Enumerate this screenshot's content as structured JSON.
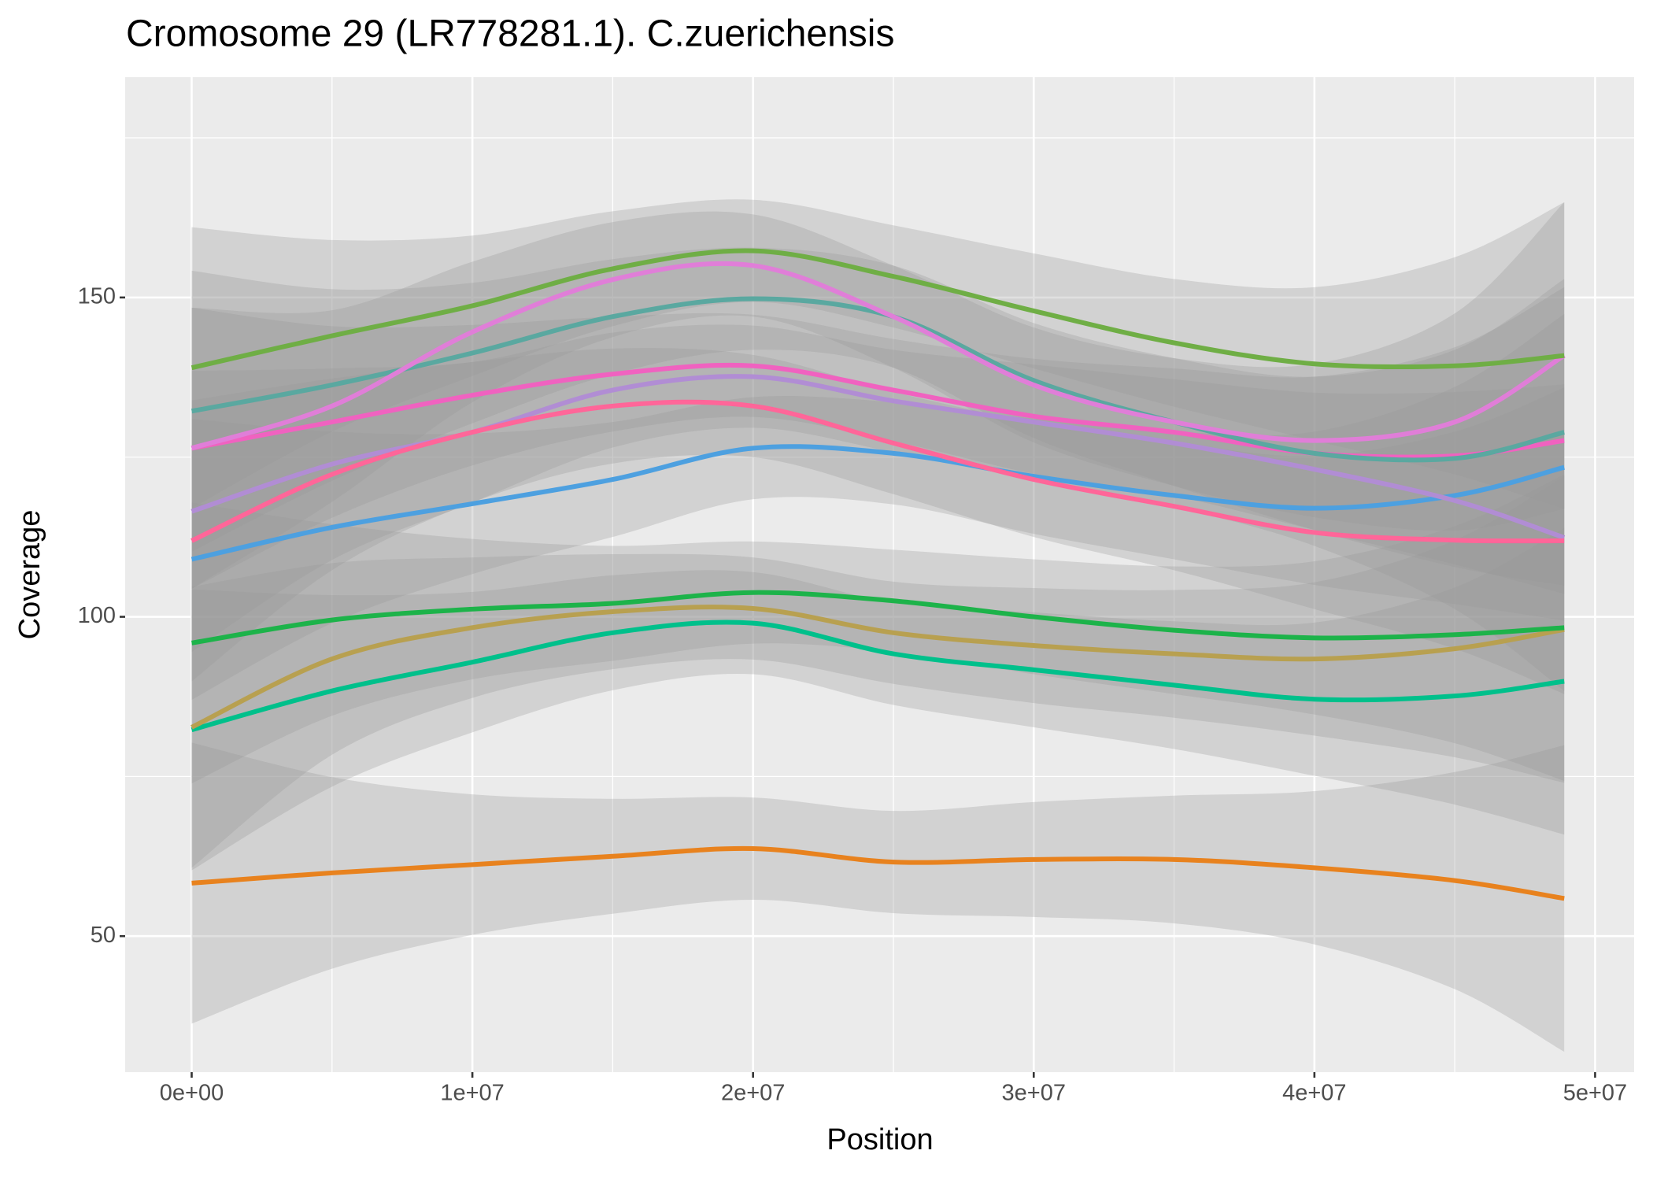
{
  "chart_data": {
    "type": "smooth",
    "title": "Cromosome 29 (LR778281.1). C.zuerichensis",
    "x_label": "Position",
    "y_label": "Coverage",
    "xlim": [
      -2370000,
      51390000
    ],
    "ylim": [
      28.7,
      184.5
    ],
    "xticks": [
      {
        "value": 0,
        "label": "0e+00"
      },
      {
        "value": 10000000,
        "label": "1e+07"
      },
      {
        "value": 20000000,
        "label": "2e+07"
      },
      {
        "value": 30000000,
        "label": "3e+07"
      },
      {
        "value": 40000000,
        "label": "4e+07"
      },
      {
        "value": 50000000,
        "label": "5e+07"
      }
    ],
    "x_minor_ticks": [
      5000000,
      15000000,
      25000000,
      35000000,
      45000000
    ],
    "yticks": [
      50,
      100,
      150
    ],
    "y_minor_ticks": [
      75,
      125,
      175
    ],
    "grid": true,
    "x": [
      0,
      5000000,
      10000000,
      15000000,
      20000000,
      25000000,
      30000000,
      35000000,
      40000000,
      45000000,
      48900000
    ],
    "ribbon_halfwidth": [
      22,
      15,
      11,
      9,
      8,
      8,
      9,
      10,
      12,
      17,
      24
    ],
    "ribbon_color": "#999999",
    "series": [
      {
        "color": "#e8821e",
        "values": [
          58.3,
          59.9,
          61.2,
          62.5,
          63.7,
          61.6,
          62,
          62,
          60.7,
          58.7,
          55.9
        ]
      },
      {
        "color": "#00c08b",
        "values": [
          82.3,
          88.4,
          92.9,
          97.5,
          99,
          94.2,
          91.7,
          89.3,
          87.1,
          87.6,
          89.9
        ]
      },
      {
        "color": "#b8a050",
        "values": [
          82.7,
          93.4,
          98.3,
          100.8,
          101.3,
          97.5,
          95.5,
          94.2,
          93.4,
          95,
          98
        ]
      },
      {
        "color": "#1db34a",
        "values": [
          95.9,
          99.5,
          101.2,
          102.1,
          103.8,
          102.5,
          100,
          97.9,
          96.7,
          97.2,
          98.3
        ]
      },
      {
        "color": "#4da0e0",
        "values": [
          109,
          114,
          117.7,
          121.5,
          126.4,
          125.6,
          122,
          119,
          117,
          119,
          123.4
        ]
      },
      {
        "color": "#b18dd4",
        "values": [
          116.5,
          123.9,
          128.9,
          135.5,
          137.6,
          133.8,
          130.5,
          127.2,
          123.1,
          118.2,
          112.4
        ]
      },
      {
        "color": "#ff6699",
        "values": [
          111.9,
          122.3,
          128.9,
          133,
          133,
          127.2,
          121.5,
          117.3,
          113.2,
          112,
          111.9
        ]
      },
      {
        "color": "#f062c0",
        "values": [
          126.4,
          130.5,
          134.7,
          138,
          139.3,
          135.5,
          131.4,
          128.9,
          125.6,
          125.2,
          127.6
        ]
      },
      {
        "color": "#5aa8a0",
        "values": [
          132.2,
          136.3,
          141.3,
          147,
          149.8,
          147,
          137,
          130.5,
          125.6,
          124.8,
          128.9
        ]
      },
      {
        "color": "#e07ed8",
        "values": [
          126.4,
          133,
          144.6,
          152.8,
          155,
          147,
          136.3,
          130.5,
          127.6,
          130.5,
          140.9
        ]
      },
      {
        "color": "#6fae45",
        "values": [
          139,
          144,
          148.7,
          154.5,
          157.3,
          153.3,
          147.9,
          142.9,
          139.6,
          139.3,
          140.9
        ]
      }
    ]
  }
}
